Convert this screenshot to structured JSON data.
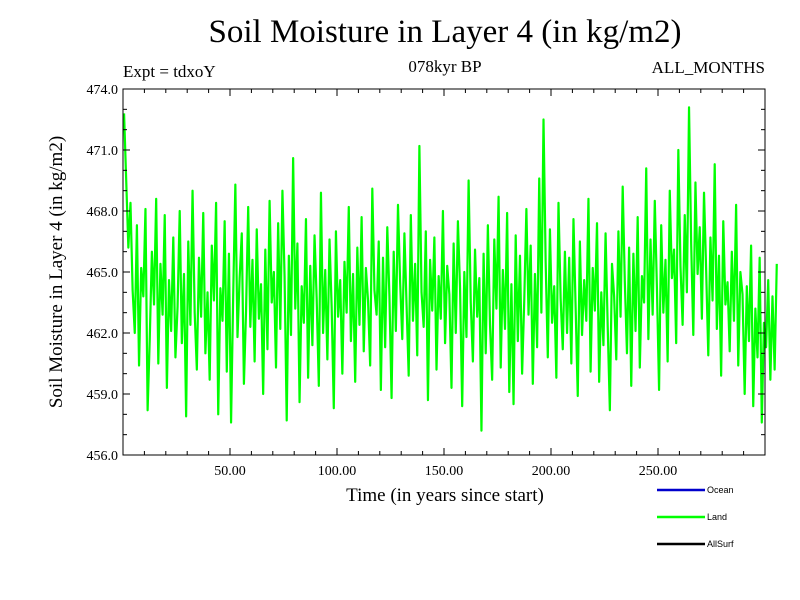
{
  "header": {
    "title": "Soil Moisture in Layer 4 (in kg/m2)",
    "subtitle": "078kyr BP",
    "experiment": "Expt = tdxoY",
    "period": "ALL_MONTHS"
  },
  "chart_data": {
    "type": "line",
    "title": "Soil Moisture in Layer 4 (in kg/m2)",
    "xlabel": "Time (in years since start)",
    "ylabel": "Soil Moisture in Layer 4 (in kg/m2)",
    "xlim": [
      0,
      300
    ],
    "ylim": [
      456.0,
      474.0
    ],
    "x_ticks": [
      50,
      100,
      150,
      200,
      250
    ],
    "x_tick_labels": [
      "50.00",
      "100.00",
      "150.00",
      "200.00",
      "250.00"
    ],
    "y_ticks": [
      456,
      459,
      462,
      465,
      468,
      471,
      474
    ],
    "y_tick_labels": [
      "456.0",
      "459.0",
      "462.0",
      "465.0",
      "468.0",
      "471.0",
      "474.0"
    ],
    "grid": false,
    "legend_position": "bottom-right",
    "series": [
      {
        "name": "Ocean",
        "color": "#0000cc",
        "values": []
      },
      {
        "name": "Land",
        "color": "#00ff00",
        "x_start": 0.5,
        "x_step": 1,
        "values": [
          472.8,
          469.5,
          466.2,
          468.4,
          464.1,
          462.0,
          467.3,
          460.4,
          465.2,
          463.8,
          468.1,
          458.2,
          461.7,
          466.0,
          463.4,
          468.6,
          460.5,
          465.4,
          462.9,
          467.8,
          459.3,
          464.6,
          462.1,
          466.7,
          460.8,
          463.3,
          468.0,
          461.5,
          464.9,
          457.9,
          466.5,
          462.4,
          469.0,
          463.0,
          460.2,
          465.7,
          462.8,
          467.9,
          461.0,
          464.0,
          459.7,
          466.3,
          463.6,
          468.4,
          458.0,
          464.2,
          462.6,
          467.5,
          460.1,
          465.9,
          457.6,
          463.9,
          469.3,
          461.8,
          464.7,
          466.9,
          459.5,
          463.1,
          468.2,
          462.3,
          465.6,
          460.6,
          467.1,
          462.7,
          464.4,
          459.0,
          466.1,
          461.2,
          468.5,
          463.5,
          465.0,
          460.3,
          467.4,
          462.2,
          469.0,
          464.8,
          457.7,
          465.8,
          461.9,
          470.6,
          463.2,
          466.4,
          458.6,
          464.3,
          462.5,
          467.6,
          459.8,
          465.3,
          461.4,
          466.8,
          463.7,
          459.4,
          468.9,
          462.0,
          465.1,
          460.7,
          466.6,
          463.3,
          458.3,
          467.0,
          462.8,
          464.6,
          460.0,
          465.5,
          463.0,
          468.2,
          461.6,
          464.9,
          459.6,
          466.2,
          462.4,
          467.7,
          461.1,
          465.2,
          463.6,
          460.4,
          469.1,
          464.1,
          462.9,
          466.5,
          459.2,
          465.7,
          461.3,
          467.2,
          463.8,
          458.8,
          466.0,
          462.1,
          468.3,
          464.5,
          461.7,
          466.9,
          463.4,
          459.9,
          467.8,
          462.6,
          465.4,
          460.9,
          471.2,
          464.0,
          462.3,
          467.0,
          458.7,
          465.6,
          463.1,
          466.7,
          460.2,
          464.8,
          462.7,
          468.0,
          461.5,
          465.3,
          463.9,
          459.3,
          466.4,
          462.0,
          467.5,
          464.2,
          458.4,
          465.0,
          461.8,
          469.5,
          463.5,
          460.6,
          466.1,
          462.8,
          464.7,
          457.2,
          465.9,
          461.0,
          467.3,
          462.4,
          459.7,
          466.6,
          463.2,
          468.7,
          460.3,
          465.1,
          462.2,
          467.9,
          459.1,
          464.4,
          458.5,
          466.8,
          461.6,
          465.8,
          460.0,
          463.6,
          468.1,
          462.9,
          466.3,
          459.5,
          464.9,
          461.3,
          469.6,
          463.0,
          472.5,
          465.5,
          460.8,
          467.1,
          462.5,
          464.3,
          459.8,
          468.4,
          463.7,
          461.2,
          466.0,
          462.0,
          465.7,
          460.5,
          467.6,
          463.3,
          458.9,
          466.5,
          461.9,
          464.6,
          462.6,
          468.6,
          460.1,
          465.2,
          463.1,
          467.4,
          459.6,
          464.0,
          461.4,
          466.9,
          462.3,
          458.2,
          465.4,
          463.8,
          460.7,
          467.0,
          462.8,
          469.2,
          464.5,
          461.0,
          466.2,
          459.4,
          465.9,
          462.1,
          467.7,
          460.3,
          464.8,
          463.5,
          470.1,
          461.7,
          466.6,
          462.9,
          468.5,
          464.2,
          459.2,
          467.3,
          463.0,
          465.6,
          460.6,
          469.0,
          464.7,
          466.1,
          461.5,
          471.0,
          465.3,
          462.4,
          467.8,
          464.0,
          473.1,
          466.4,
          461.9,
          469.4,
          464.9,
          467.2,
          462.7,
          468.9,
          465.1,
          460.9,
          466.7,
          463.6,
          470.3,
          462.2,
          465.8,
          459.9,
          467.5,
          463.4,
          464.5,
          461.1,
          466.0,
          462.6,
          468.3,
          460.4,
          465.0,
          463.9,
          459.0,
          464.3,
          461.6,
          466.3,
          458.4,
          463.2,
          460.8,
          465.7,
          457.6,
          462.5,
          461.3,
          464.6,
          459.7,
          463.8,
          460.2,
          465.4
        ]
      },
      {
        "name": "AllSurf",
        "color": "#000000",
        "values": []
      }
    ]
  }
}
